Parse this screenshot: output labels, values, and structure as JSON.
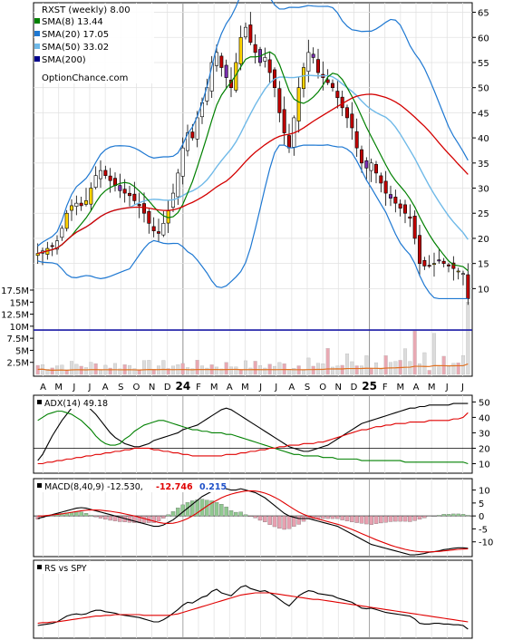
{
  "chart_data": [
    {
      "type": "candlestick",
      "panel": "price",
      "title": "RXST (weekly) 8.00",
      "watermark": "OptionChance.com",
      "legend": [
        {
          "label": "SMA(8) 13.44",
          "color": "#008000"
        },
        {
          "label": "SMA(20) 17.05",
          "color": "#1e78d2"
        },
        {
          "label": "SMA(50) 33.02",
          "color": "#6fb9e8"
        },
        {
          "label": "SMA(200)",
          "color": "#00008b"
        }
      ],
      "price_ticks": [
        10,
        15,
        20,
        25,
        30,
        35,
        40,
        45,
        50,
        55,
        60,
        65
      ],
      "price_range": [
        7,
        66
      ],
      "volume_ticks": [
        "2.5M",
        "5M",
        "7.5M",
        "10M",
        "12.5M",
        "15M",
        "17.5M"
      ],
      "volume_values_m": [
        2.5,
        5,
        7.5,
        10,
        12.5,
        15,
        17.5
      ],
      "volume_range_m": [
        0,
        17.5
      ],
      "volume_reference_m": 9.2,
      "x_labels": [
        "A",
        "M",
        "J",
        "J",
        "A",
        "S",
        "O",
        "N",
        "D",
        "24",
        "F",
        "M",
        "A",
        "M",
        "J",
        "J",
        "A",
        "S",
        "O",
        "N",
        "D",
        "25",
        "F",
        "M",
        "A",
        "M",
        "J",
        "J"
      ],
      "close_series": [
        17.0,
        17.5,
        18.0,
        18.5,
        19.5,
        22.0,
        25.0,
        26.5,
        27.0,
        26.5,
        27.5,
        30.0,
        32.5,
        33.5,
        32.5,
        31.5,
        30.5,
        29.5,
        29.0,
        28.5,
        27.5,
        26.5,
        25.0,
        23.0,
        21.5,
        21.0,
        23.0,
        25.5,
        29.0,
        33.0,
        38.0,
        41.0,
        40.0,
        44.0,
        47.0,
        50.0,
        55.0,
        57.0,
        54.0,
        52.0,
        50.0,
        55.0,
        60.0,
        62.0,
        59.0,
        57.0,
        55.0,
        56.0,
        53.0,
        50.0,
        45.0,
        41.0,
        38.0,
        44.0,
        50.0,
        54.0,
        57.0,
        56.0,
        53.0,
        52.0,
        51.0,
        50.0,
        48.0,
        46.0,
        44.0,
        42.0,
        38.0,
        35.0,
        34.0,
        35.0,
        33.0,
        31.0,
        29.0,
        28.0,
        27.0,
        26.0,
        25.0,
        24.0,
        20.0,
        15.0,
        14.5,
        14.5,
        15.0,
        15.5,
        15.0,
        14.5,
        14.0,
        13.5,
        13.0,
        8.0
      ],
      "sma_legend_values": {
        "sma8": 13.44,
        "sma20": 17.05,
        "sma50": 33.02
      }
    },
    {
      "type": "line",
      "panel": "adx",
      "label": "ADX(14) 49.18",
      "ticks": [
        10,
        20,
        30,
        40,
        50
      ],
      "range": [
        5,
        52
      ],
      "series": [
        {
          "name": "ADX",
          "color": "#000000",
          "values": [
            12,
            16,
            22,
            28,
            33,
            38,
            42,
            46,
            48,
            49,
            48,
            45,
            42,
            38,
            34,
            30,
            27,
            25,
            23,
            22,
            21,
            21,
            22,
            23,
            25,
            26,
            27,
            28,
            29,
            30,
            32,
            33,
            34,
            35,
            37,
            39,
            41,
            43,
            45,
            46,
            45,
            43,
            41,
            39,
            37,
            35,
            33,
            31,
            29,
            27,
            25,
            23,
            21,
            20,
            19,
            18,
            18,
            19,
            20,
            21,
            22,
            24,
            26,
            28,
            30,
            32,
            34,
            36,
            37,
            38,
            39,
            40,
            41,
            42,
            43,
            44,
            45,
            46,
            46,
            47,
            47,
            48,
            48,
            48,
            48,
            48,
            49,
            49,
            49,
            49
          ]
        },
        {
          "name": "+DI",
          "color": "#008000",
          "values": [
            38,
            40,
            42,
            43,
            44,
            44,
            43,
            42,
            40,
            38,
            35,
            32,
            28,
            25,
            23,
            22,
            22,
            23,
            26,
            28,
            31,
            33,
            35,
            36,
            37,
            38,
            38,
            37,
            36,
            35,
            34,
            33,
            32,
            32,
            31,
            31,
            30,
            30,
            30,
            29,
            29,
            28,
            27,
            26,
            25,
            24,
            23,
            22,
            21,
            20,
            19,
            18,
            17,
            16,
            16,
            15,
            15,
            15,
            15,
            14,
            14,
            14,
            13,
            13,
            13,
            13,
            13,
            12,
            12,
            12,
            12,
            12,
            12,
            12,
            12,
            12,
            11,
            11,
            11,
            11,
            11,
            11,
            11,
            11,
            11,
            11,
            11,
            11,
            11,
            10
          ]
        },
        {
          "name": "-DI",
          "color": "#e00000",
          "values": [
            10,
            10,
            11,
            11,
            12,
            12,
            13,
            13,
            14,
            14,
            15,
            15,
            16,
            16,
            17,
            17,
            18,
            18,
            19,
            19,
            20,
            20,
            20,
            20,
            19,
            19,
            18,
            18,
            17,
            17,
            16,
            16,
            15,
            15,
            15,
            15,
            15,
            15,
            15,
            16,
            16,
            16,
            17,
            17,
            18,
            18,
            19,
            19,
            20,
            20,
            21,
            21,
            22,
            22,
            22,
            23,
            23,
            23,
            24,
            24,
            25,
            26,
            27,
            28,
            29,
            30,
            31,
            32,
            32,
            33,
            34,
            34,
            35,
            35,
            36,
            36,
            36,
            37,
            37,
            37,
            37,
            38,
            38,
            38,
            38,
            38,
            39,
            39,
            40,
            43
          ]
        }
      ]
    },
    {
      "type": "line",
      "panel": "macd",
      "label": "MACD(8,40,9) -12.530,",
      "macd_value": "-12.746",
      "hist_value": "0.215",
      "ticks": [
        10,
        5,
        0,
        -5,
        -10
      ],
      "range": [
        -15,
        13
      ],
      "series": [
        {
          "name": "MACD",
          "color": "#000000",
          "values": [
            -1.0,
            -0.5,
            0.0,
            0.5,
            1.0,
            1.5,
            2.0,
            2.5,
            3.0,
            3.2,
            3.0,
            2.5,
            2.0,
            1.5,
            1.0,
            0.5,
            0.0,
            -0.5,
            -1.0,
            -1.5,
            -2.0,
            -2.5,
            -3.0,
            -3.5,
            -4.0,
            -4.0,
            -3.5,
            -2.5,
            -1.5,
            0.0,
            1.5,
            3.0,
            4.5,
            6.0,
            7.5,
            8.5,
            9.5,
            10.0,
            10.5,
            10.5,
            10.0,
            10.0,
            10.5,
            10.0,
            9.5,
            9.0,
            8.0,
            7.0,
            5.5,
            4.0,
            2.5,
            1.0,
            0.0,
            -0.5,
            -1.0,
            -1.0,
            -1.0,
            -1.5,
            -2.0,
            -2.5,
            -3.0,
            -3.5,
            -4.0,
            -5.0,
            -6.0,
            -7.0,
            -8.0,
            -9.0,
            -10.0,
            -11.0,
            -11.5,
            -12.0,
            -12.5,
            -13.0,
            -13.5,
            -14.0,
            -14.5,
            -15.0,
            -15.0,
            -14.8,
            -14.5,
            -14.0,
            -13.8,
            -13.5,
            -13.0,
            -12.8,
            -12.5,
            -12.3,
            -12.3,
            -12.5
          ]
        },
        {
          "name": "Signal",
          "color": "#e00000",
          "values": [
            0.0,
            0.0,
            0.2,
            0.4,
            0.6,
            0.8,
            1.1,
            1.4,
            1.7,
            2.0,
            2.2,
            2.3,
            2.3,
            2.2,
            2.0,
            1.8,
            1.5,
            1.2,
            0.8,
            0.4,
            0.0,
            -0.5,
            -1.0,
            -1.5,
            -2.0,
            -2.5,
            -2.8,
            -2.9,
            -2.8,
            -2.4,
            -1.8,
            -1.0,
            0.0,
            1.2,
            2.5,
            3.8,
            5.0,
            6.0,
            7.0,
            7.8,
            8.4,
            8.9,
            9.3,
            9.6,
            9.7,
            9.6,
            9.3,
            8.8,
            8.1,
            7.2,
            6.2,
            5.0,
            3.8,
            2.6,
            1.5,
            0.6,
            -0.1,
            -0.7,
            -1.2,
            -1.7,
            -2.2,
            -2.7,
            -3.2,
            -3.8,
            -4.5,
            -5.2,
            -6.0,
            -6.8,
            -7.6,
            -8.4,
            -9.2,
            -9.9,
            -10.6,
            -11.3,
            -11.9,
            -12.4,
            -12.9,
            -13.3,
            -13.6,
            -13.8,
            -13.9,
            -13.9,
            -13.8,
            -13.7,
            -13.5,
            -13.3,
            -13.1,
            -12.9,
            -12.8,
            -12.7
          ]
        }
      ]
    },
    {
      "type": "line",
      "panel": "rs",
      "label": "RS vs SPY",
      "range": [
        0,
        100
      ],
      "series": [
        {
          "name": "RS",
          "color": "#000000",
          "values": [
            15,
            16,
            17,
            18,
            20,
            24,
            28,
            30,
            31,
            30,
            31,
            34,
            36,
            36,
            34,
            33,
            32,
            30,
            29,
            28,
            27,
            26,
            24,
            22,
            20,
            20,
            23,
            27,
            32,
            37,
            43,
            47,
            46,
            50,
            54,
            56,
            62,
            65,
            60,
            58,
            56,
            62,
            68,
            70,
            66,
            64,
            62,
            63,
            60,
            56,
            51,
            46,
            42,
            49,
            56,
            60,
            63,
            62,
            59,
            58,
            57,
            56,
            53,
            51,
            49,
            47,
            43,
            39,
            38,
            39,
            37,
            35,
            33,
            32,
            31,
            30,
            29,
            28,
            24,
            18,
            17,
            17,
            18,
            18,
            17,
            17,
            16,
            16,
            15,
            10
          ]
        },
        {
          "name": "RS MA",
          "color": "#e00000",
          "values": [
            18,
            19,
            19,
            20,
            20,
            21,
            22,
            23,
            24,
            25,
            26,
            27,
            28,
            28,
            29,
            29,
            30,
            30,
            30,
            30,
            30,
            30,
            29,
            29,
            29,
            29,
            29,
            29,
            30,
            31,
            33,
            35,
            37,
            39,
            41,
            43,
            45,
            47,
            49,
            51,
            53,
            55,
            57,
            58,
            59,
            60,
            60,
            60,
            60,
            59,
            58,
            57,
            56,
            55,
            54,
            53,
            52,
            51,
            51,
            50,
            49,
            48,
            47,
            46,
            45,
            44,
            43,
            42,
            41,
            40,
            39,
            38,
            37,
            36,
            35,
            34,
            33,
            32,
            31,
            30,
            29,
            28,
            27,
            26,
            25,
            24,
            23,
            22,
            21,
            20
          ]
        }
      ]
    }
  ]
}
